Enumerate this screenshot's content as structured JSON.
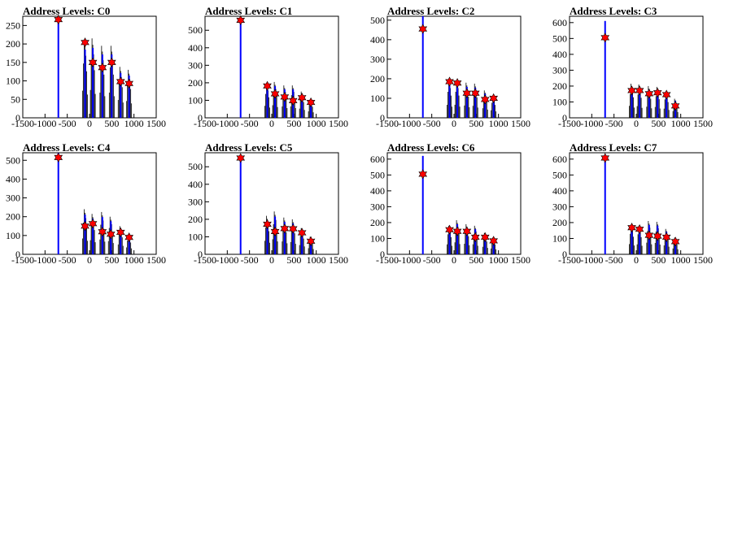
{
  "colors": {
    "marker": "#ff0000",
    "marker_outline": "#000000",
    "fill": "#0000ff",
    "line": "#000000"
  },
  "chart_data": [
    {
      "type": "bar",
      "title": "Address Levels: C0",
      "xlim": [
        -1500,
        1500
      ],
      "ylim": [
        0,
        275
      ],
      "xticks": [
        -1500,
        -1000,
        -500,
        0,
        500,
        1000,
        1500
      ],
      "yticks": [
        0,
        50,
        100,
        150,
        200,
        250
      ],
      "peaks": [
        {
          "x": -700,
          "y": 275,
          "marker": 266
        },
        {
          "x": -100,
          "y": 210,
          "marker": 204
        },
        {
          "x": 75,
          "y": 215,
          "marker": 150
        },
        {
          "x": 290,
          "y": 195,
          "marker": 136
        },
        {
          "x": 500,
          "y": 195,
          "marker": 150
        },
        {
          "x": 700,
          "y": 138,
          "marker": 98
        },
        {
          "x": 890,
          "y": 130,
          "marker": 93
        }
      ]
    },
    {
      "type": "bar",
      "title": "Address Levels: C1",
      "xlim": [
        -1500,
        1500
      ],
      "ylim": [
        0,
        580
      ],
      "xticks": [
        -1500,
        -1000,
        -500,
        0,
        500,
        1000,
        1500
      ],
      "yticks": [
        0,
        100,
        200,
        300,
        400,
        500
      ],
      "peaks": [
        {
          "x": -700,
          "y": 570,
          "marker": 557
        },
        {
          "x": -100,
          "y": 195,
          "marker": 182
        },
        {
          "x": 75,
          "y": 205,
          "marker": 137
        },
        {
          "x": 290,
          "y": 185,
          "marker": 119
        },
        {
          "x": 480,
          "y": 185,
          "marker": 98
        },
        {
          "x": 680,
          "y": 150,
          "marker": 115
        },
        {
          "x": 880,
          "y": 105,
          "marker": 88
        }
      ]
    },
    {
      "type": "bar",
      "title": "Address Levels: C2",
      "xlim": [
        -1500,
        1500
      ],
      "ylim": [
        0,
        520
      ],
      "xticks": [
        -1500,
        -1000,
        -500,
        0,
        500,
        1000,
        1500
      ],
      "yticks": [
        0,
        100,
        200,
        300,
        400,
        500
      ],
      "peaks": [
        {
          "x": -700,
          "y": 520,
          "marker": 455
        },
        {
          "x": -100,
          "y": 190,
          "marker": 185
        },
        {
          "x": 75,
          "y": 190,
          "marker": 178
        },
        {
          "x": 290,
          "y": 180,
          "marker": 126
        },
        {
          "x": 480,
          "y": 175,
          "marker": 126
        },
        {
          "x": 700,
          "y": 140,
          "marker": 94
        },
        {
          "x": 890,
          "y": 110,
          "marker": 100
        }
      ]
    },
    {
      "type": "bar",
      "title": "Address Levels: C3",
      "xlim": [
        -1500,
        1500
      ],
      "ylim": [
        0,
        640
      ],
      "xticks": [
        -1500,
        -1000,
        -500,
        0,
        500,
        1000,
        1500
      ],
      "yticks": [
        0,
        100,
        200,
        300,
        400,
        500,
        600
      ],
      "peaks": [
        {
          "x": -700,
          "y": 610,
          "marker": 505
        },
        {
          "x": -100,
          "y": 215,
          "marker": 172
        },
        {
          "x": 75,
          "y": 210,
          "marker": 172
        },
        {
          "x": 290,
          "y": 200,
          "marker": 152
        },
        {
          "x": 480,
          "y": 195,
          "marker": 158
        },
        {
          "x": 680,
          "y": 165,
          "marker": 146
        },
        {
          "x": 880,
          "y": 120,
          "marker": 75
        }
      ]
    },
    {
      "type": "bar",
      "title": "Address Levels: C4",
      "xlim": [
        -1500,
        1500
      ],
      "ylim": [
        0,
        540
      ],
      "xticks": [
        -1500,
        -1000,
        -500,
        0,
        500,
        1000,
        1500
      ],
      "yticks": [
        0,
        100,
        200,
        300,
        400,
        500
      ],
      "peaks": [
        {
          "x": -700,
          "y": 540,
          "marker": 515
        },
        {
          "x": -100,
          "y": 240,
          "marker": 150
        },
        {
          "x": 75,
          "y": 215,
          "marker": 163
        },
        {
          "x": 290,
          "y": 225,
          "marker": 120
        },
        {
          "x": 480,
          "y": 200,
          "marker": 107
        },
        {
          "x": 700,
          "y": 150,
          "marker": 117
        },
        {
          "x": 890,
          "y": 105,
          "marker": 90
        }
      ]
    },
    {
      "type": "bar",
      "title": "Address Levels: C5",
      "xlim": [
        -1500,
        1500
      ],
      "ylim": [
        0,
        580
      ],
      "xticks": [
        -1500,
        -1000,
        -500,
        0,
        500,
        1000,
        1500
      ],
      "yticks": [
        0,
        100,
        200,
        300,
        400,
        500
      ],
      "peaks": [
        {
          "x": -700,
          "y": 560,
          "marker": 550
        },
        {
          "x": -100,
          "y": 220,
          "marker": 172
        },
        {
          "x": 75,
          "y": 245,
          "marker": 130
        },
        {
          "x": 290,
          "y": 210,
          "marker": 147
        },
        {
          "x": 480,
          "y": 200,
          "marker": 146
        },
        {
          "x": 680,
          "y": 150,
          "marker": 123
        },
        {
          "x": 880,
          "y": 100,
          "marker": 75
        }
      ]
    },
    {
      "type": "bar",
      "title": "Address Levels: C6",
      "xlim": [
        -1500,
        1500
      ],
      "ylim": [
        0,
        640
      ],
      "xticks": [
        -1500,
        -1000,
        -500,
        0,
        500,
        1000,
        1500
      ],
      "yticks": [
        0,
        100,
        200,
        300,
        400,
        500,
        600
      ],
      "peaks": [
        {
          "x": -700,
          "y": 620,
          "marker": 505
        },
        {
          "x": -100,
          "y": 180,
          "marker": 155
        },
        {
          "x": 75,
          "y": 215,
          "marker": 145
        },
        {
          "x": 290,
          "y": 190,
          "marker": 145
        },
        {
          "x": 480,
          "y": 180,
          "marker": 108
        },
        {
          "x": 700,
          "y": 135,
          "marker": 108
        },
        {
          "x": 890,
          "y": 105,
          "marker": 85
        }
      ]
    },
    {
      "type": "bar",
      "title": "Address Levels: C7",
      "xlim": [
        -1500,
        1500
      ],
      "ylim": [
        0,
        640
      ],
      "xticks": [
        -1500,
        -1000,
        -500,
        0,
        500,
        1000,
        1500
      ],
      "yticks": [
        0,
        100,
        200,
        300,
        400,
        500,
        600
      ],
      "peaks": [
        {
          "x": -700,
          "y": 620,
          "marker": 607
        },
        {
          "x": -100,
          "y": 185,
          "marker": 168
        },
        {
          "x": 75,
          "y": 180,
          "marker": 158
        },
        {
          "x": 290,
          "y": 210,
          "marker": 120
        },
        {
          "x": 480,
          "y": 205,
          "marker": 115
        },
        {
          "x": 680,
          "y": 160,
          "marker": 108
        },
        {
          "x": 880,
          "y": 105,
          "marker": 80
        }
      ]
    }
  ]
}
